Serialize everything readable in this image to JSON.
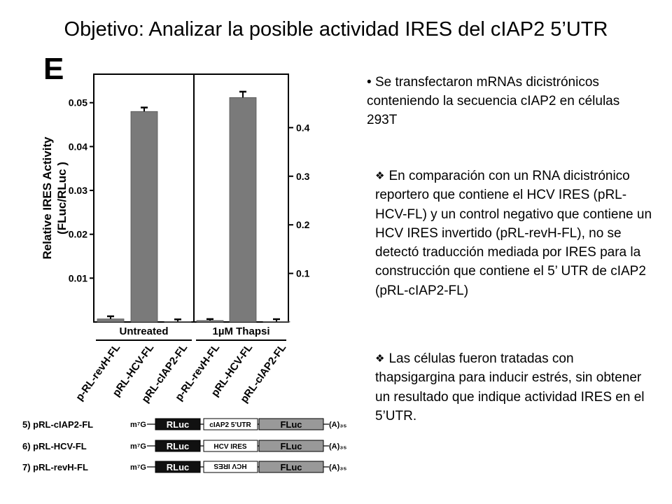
{
  "slide": {
    "title": "Objetivo: Analizar la posible actividad IRES del cIAP2 5’UTR",
    "panel_letter": "E",
    "bullet_marker_1": "•",
    "bullet_1": "Se transfectaron mRNAs dicistrónicos conteniendo la secuencia cIAP2 en células 293T",
    "bullet_2": "En comparación con un RNA dicistrónico reportero que contiene el HCV IRES (pRL-HCV-FL) y un control negativo que contiene un HCV IRES invertido (pRL-revH-FL), no se detectó traducción mediada por IRES para la construcción que contiene el 5’ UTR de cIAP2 (pRL-cIAP2-FL)",
    "bullet_3": "Las células fueron tratadas con thapsigargina para inducir estrés, sin obtener un resultado que indique actividad IRES en el 5’UTR.",
    "diamond_icon": "diamond-bullet-icon"
  },
  "chart_data": {
    "type": "bar",
    "ylabel_line1": "Relative IRES Activity",
    "ylabel_line2": "(FLuc/RLuc )",
    "left_axis": {
      "ticks": [
        0.01,
        0.02,
        0.03,
        0.04,
        0.05
      ],
      "tick_labels": [
        "0.01",
        "0.02",
        "0.03",
        "0.04",
        "0.05"
      ],
      "ylim": [
        0,
        0.0565
      ]
    },
    "right_axis": {
      "ticks": [
        0.1,
        0.2,
        0.3,
        0.4
      ],
      "tick_labels": [
        "0.1",
        "0.2",
        "0.3",
        "0.4"
      ],
      "ylim": [
        0,
        0.51
      ]
    },
    "groups": [
      {
        "label": "Untreated",
        "axis": "left",
        "categories": [
          "p-RL-revH-FL",
          "pRL-HCV-FL",
          "pRL-cIAP2-FL"
        ],
        "values": [
          0.0007,
          0.048,
          0.0001
        ],
        "errors": [
          0.0006,
          0.0009,
          0.0005
        ]
      },
      {
        "label": "1µM Thapsi",
        "axis": "right",
        "categories": [
          "p-RL-revH-FL",
          "pRL-HCV-FL",
          "pRL-cIAP2-FL"
        ],
        "values": [
          0.003,
          0.462,
          0.0008
        ],
        "errors": [
          0.003,
          0.012,
          0.005
        ]
      }
    ],
    "bar_color": "#7a7a7a",
    "grid": false
  },
  "constructs": [
    {
      "label": "5) pRL-cIAP2-FL",
      "cap": "m⁷G",
      "rluc": "RLuc",
      "insert": "cIAP2 5’UTR",
      "inverted": false,
      "fluc": "FLuc",
      "tail": "(A)₃₅"
    },
    {
      "label": "6) pRL-HCV-FL",
      "cap": "m⁷G",
      "rluc": "RLuc",
      "insert": "HCV IRES",
      "inverted": false,
      "fluc": "FLuc",
      "tail": "(A)₃₅"
    },
    {
      "label": "7) pRL-revH-FL",
      "cap": "m⁷G",
      "rluc": "RLuc",
      "insert": "HCV IRES",
      "inverted": true,
      "fluc": "FLuc",
      "tail": "(A)₃₅"
    }
  ]
}
